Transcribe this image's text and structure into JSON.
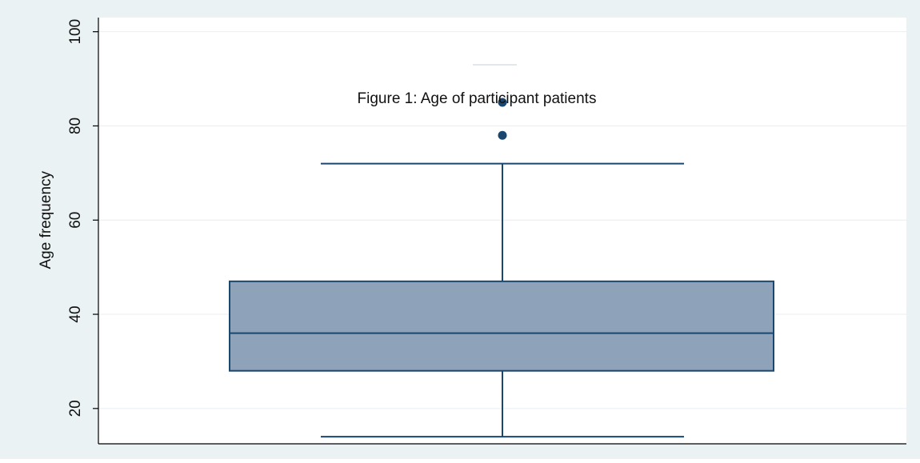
{
  "chart_data": {
    "type": "box",
    "title": "Figure 1: Age of participant patients",
    "xlabel": "",
    "ylabel": "Age frequency",
    "ylim": [
      12.5,
      103
    ],
    "yticks": [
      20,
      40,
      60,
      80,
      100
    ],
    "ytick_labels": [
      "20",
      "40",
      "60",
      "80",
      "100"
    ],
    "grid": true,
    "box": {
      "whisker_low": 14,
      "q1": 28,
      "median": 36,
      "q3": 47,
      "whisker_high": 72
    },
    "outliers": [
      78,
      85
    ],
    "colors": {
      "outer_background": "#eaf2f3",
      "plot_background": "#ffffff",
      "box_fill": "#8ea3b9",
      "box_stroke": "#1a476f",
      "outlier": "#1a476f",
      "grid": "#e8eef1",
      "axis": "#000000",
      "text": "#111111"
    }
  }
}
